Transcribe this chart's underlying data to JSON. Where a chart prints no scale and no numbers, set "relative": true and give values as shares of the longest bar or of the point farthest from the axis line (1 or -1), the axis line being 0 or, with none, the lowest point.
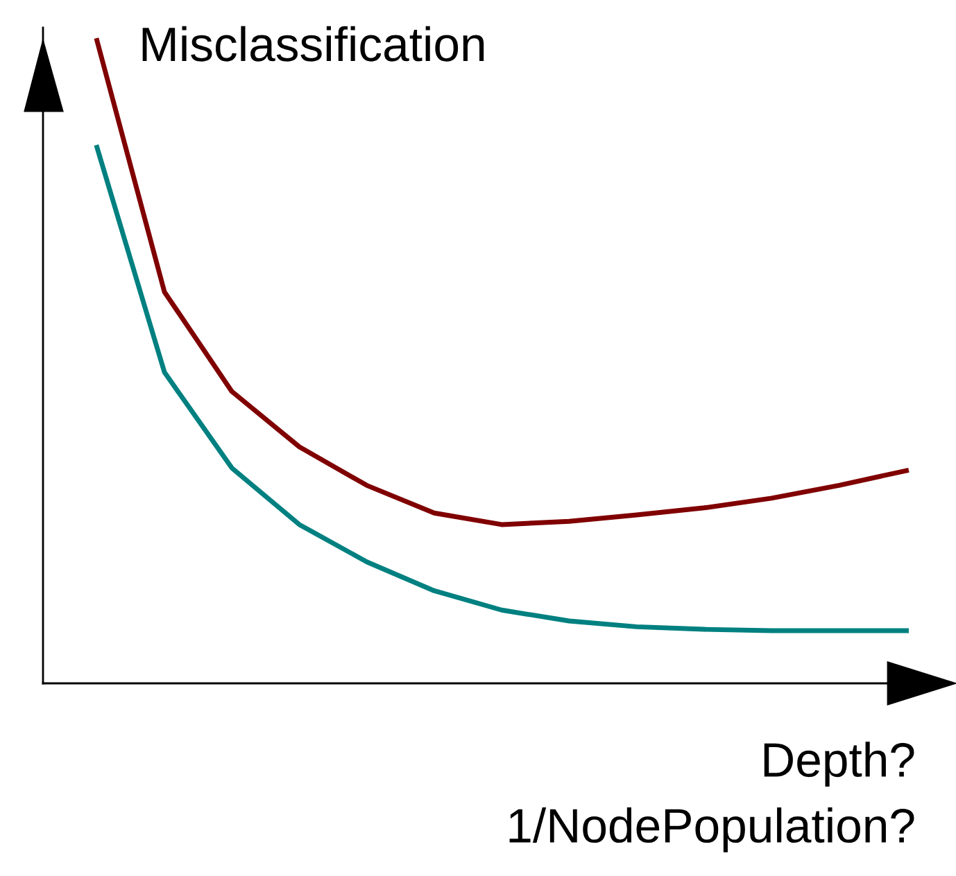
{
  "chart_data": {
    "type": "line",
    "relative": true,
    "ylabel": "Misclassification",
    "xlabel": "Depth?\n1/NodePopulation?",
    "categories": [
      null,
      null,
      null,
      null,
      null,
      null,
      null,
      null,
      null,
      null,
      null,
      null,
      null
    ],
    "series": [
      {
        "color": "#800000",
        "values": [
          1.0,
          0.609,
          0.454,
          0.368,
          0.308,
          0.265,
          0.247,
          0.252,
          0.262,
          0.273,
          0.288,
          0.308,
          0.331
        ]
      },
      {
        "color": "#008080",
        "values": [
          0.834,
          0.484,
          0.335,
          0.247,
          0.189,
          0.144,
          0.114,
          0.097,
          0.088,
          0.084,
          0.082,
          0.082,
          0.082
        ]
      }
    ],
    "grid": false,
    "legend": false,
    "marker": "none",
    "line_style": "solid"
  }
}
